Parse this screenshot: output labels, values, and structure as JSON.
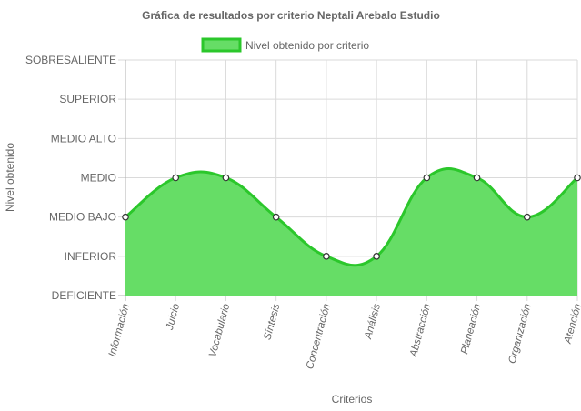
{
  "chart_data": {
    "type": "area",
    "title": "Gráfica de resultados por criterio Neptali Arebalo Estudio",
    "xlabel": "Criterios",
    "ylabel": "Nivel obtenido",
    "legend_position": "top",
    "grid": true,
    "y_levels": [
      "DEFICIENTE",
      "INFERIOR",
      "MEDIO BAJO",
      "MEDIO",
      "MEDIO ALTO",
      "SUPERIOR",
      "SOBRESALIENTE"
    ],
    "ylim": [
      0,
      6
    ],
    "categories": [
      "Información",
      "Juicio",
      "Vocabulario",
      "Síntesis",
      "Concentración",
      "Análisis",
      "Abstracción",
      "Planeación",
      "Organización",
      "Atención"
    ],
    "series": [
      {
        "name": "Nivel obtenido por criterio",
        "values": [
          2,
          3,
          3,
          2,
          1,
          1,
          3,
          3,
          2,
          3
        ],
        "fill_color": "#66dd66",
        "line_color": "#2bc72b"
      }
    ]
  }
}
